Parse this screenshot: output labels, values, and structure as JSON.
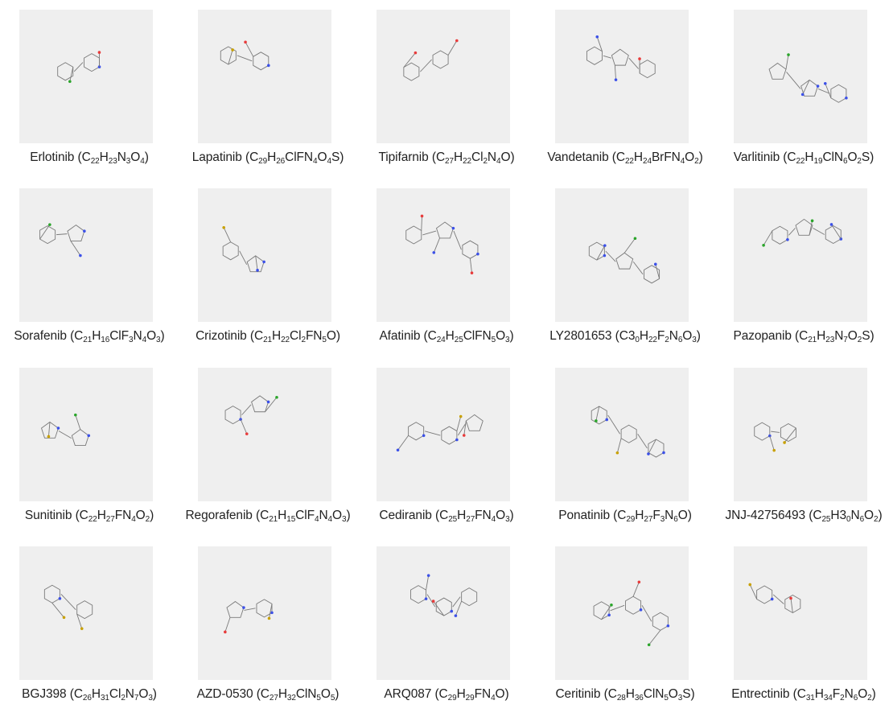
{
  "figure": {
    "molecules": [
      {
        "name": "Erlotinib",
        "formula": [
          [
            "C",
            "22"
          ],
          [
            "H",
            "23"
          ],
          [
            "N",
            "3"
          ],
          [
            "O",
            "4"
          ]
        ]
      },
      {
        "name": "Lapatinib",
        "formula": [
          [
            "C",
            "29"
          ],
          [
            "H",
            "26"
          ],
          [
            "ClFN",
            "4"
          ],
          [
            "O",
            "4"
          ],
          [
            "S",
            ""
          ]
        ]
      },
      {
        "name": "Tipifarnib",
        "formula": [
          [
            "C",
            "27"
          ],
          [
            "H",
            "22"
          ],
          [
            "Cl",
            "2"
          ],
          [
            "N",
            "4"
          ],
          [
            "O",
            ""
          ]
        ]
      },
      {
        "name": "Vandetanib",
        "formula": [
          [
            "C",
            "22"
          ],
          [
            "H",
            "24"
          ],
          [
            "BrFN",
            "4"
          ],
          [
            "O",
            "2"
          ]
        ]
      },
      {
        "name": "Varlitinib",
        "formula": [
          [
            "C",
            "22"
          ],
          [
            "H",
            "19"
          ],
          [
            "ClN",
            "6"
          ],
          [
            "O",
            "2"
          ],
          [
            "S",
            ""
          ]
        ]
      },
      {
        "name": "Sorafenib",
        "formula": [
          [
            "C",
            "21"
          ],
          [
            "H",
            "16"
          ],
          [
            "ClF",
            "3"
          ],
          [
            "N",
            "4"
          ],
          [
            "O",
            "3"
          ]
        ]
      },
      {
        "name": "Crizotinib",
        "formula": [
          [
            "C",
            "21"
          ],
          [
            "H",
            "22"
          ],
          [
            "Cl",
            "2"
          ],
          [
            "FN",
            "5"
          ],
          [
            "O",
            ""
          ]
        ]
      },
      {
        "name": "Afatinib",
        "formula": [
          [
            "C",
            "24"
          ],
          [
            "H",
            "25"
          ],
          [
            "ClFN",
            "5"
          ],
          [
            "O",
            "3"
          ]
        ]
      },
      {
        "name": "LY2801653",
        "formula": [
          [
            "C3",
            "0"
          ],
          [
            "H",
            "22"
          ],
          [
            "F",
            "2"
          ],
          [
            "N",
            "6"
          ],
          [
            "O",
            "3"
          ]
        ]
      },
      {
        "name": "Pazopanib",
        "formula": [
          [
            "C",
            "21"
          ],
          [
            "H",
            "23"
          ],
          [
            "N",
            "7"
          ],
          [
            "O",
            "2"
          ],
          [
            "S",
            ""
          ]
        ]
      },
      {
        "name": "Sunitinib",
        "formula": [
          [
            "C",
            "22"
          ],
          [
            "H",
            "27"
          ],
          [
            "FN",
            "4"
          ],
          [
            "O",
            "2"
          ]
        ]
      },
      {
        "name": "Regorafenib",
        "formula": [
          [
            "C",
            "21"
          ],
          [
            "H",
            "15"
          ],
          [
            "ClF",
            "4"
          ],
          [
            "N",
            "4"
          ],
          [
            "O",
            "3"
          ]
        ]
      },
      {
        "name": "Cediranib",
        "formula": [
          [
            "C",
            "25"
          ],
          [
            "H",
            "27"
          ],
          [
            "FN",
            "4"
          ],
          [
            "O",
            "3"
          ]
        ]
      },
      {
        "name": "Ponatinib",
        "formula": [
          [
            "C",
            "29"
          ],
          [
            "H",
            "27"
          ],
          [
            "F",
            "3"
          ],
          [
            "N",
            "6"
          ],
          [
            "O",
            ""
          ]
        ]
      },
      {
        "name": "JNJ-42756493",
        "formula": [
          [
            "C",
            "25"
          ],
          [
            "H3",
            "0"
          ],
          [
            "N",
            "6"
          ],
          [
            "O",
            "2"
          ]
        ]
      },
      {
        "name": "BGJ398",
        "formula": [
          [
            "C",
            "26"
          ],
          [
            "H",
            "31"
          ],
          [
            "Cl",
            "2"
          ],
          [
            "N",
            "7"
          ],
          [
            "O",
            "3"
          ]
        ]
      },
      {
        "name": "AZD-0530",
        "formula": [
          [
            "C",
            "27"
          ],
          [
            "H",
            "32"
          ],
          [
            "ClN",
            "5"
          ],
          [
            "O",
            "5"
          ]
        ]
      },
      {
        "name": "ARQ087",
        "formula": [
          [
            "C",
            "29"
          ],
          [
            "H",
            "29"
          ],
          [
            "FN",
            "4"
          ],
          [
            "O",
            ""
          ]
        ]
      },
      {
        "name": "Ceritinib",
        "formula": [
          [
            "C",
            "28"
          ],
          [
            "H",
            "36"
          ],
          [
            "ClN",
            "5"
          ],
          [
            "O",
            "3"
          ],
          [
            "S",
            ""
          ]
        ]
      },
      {
        "name": "Entrectinib",
        "formula": [
          [
            "C",
            "31"
          ],
          [
            "H",
            "34"
          ],
          [
            "F",
            "2"
          ],
          [
            "N",
            "6"
          ],
          [
            "O",
            "2"
          ]
        ]
      }
    ],
    "colors": {
      "panel_bg": "#efefef",
      "bond": "#7a7a7a",
      "nitrogen": "#3b50e8",
      "oxygen": "#e83b3b",
      "chlorine": "#2aa52a",
      "fluorine": "#c8a000",
      "sulfur": "#c9b400",
      "bromine": "#9a3a14"
    }
  }
}
